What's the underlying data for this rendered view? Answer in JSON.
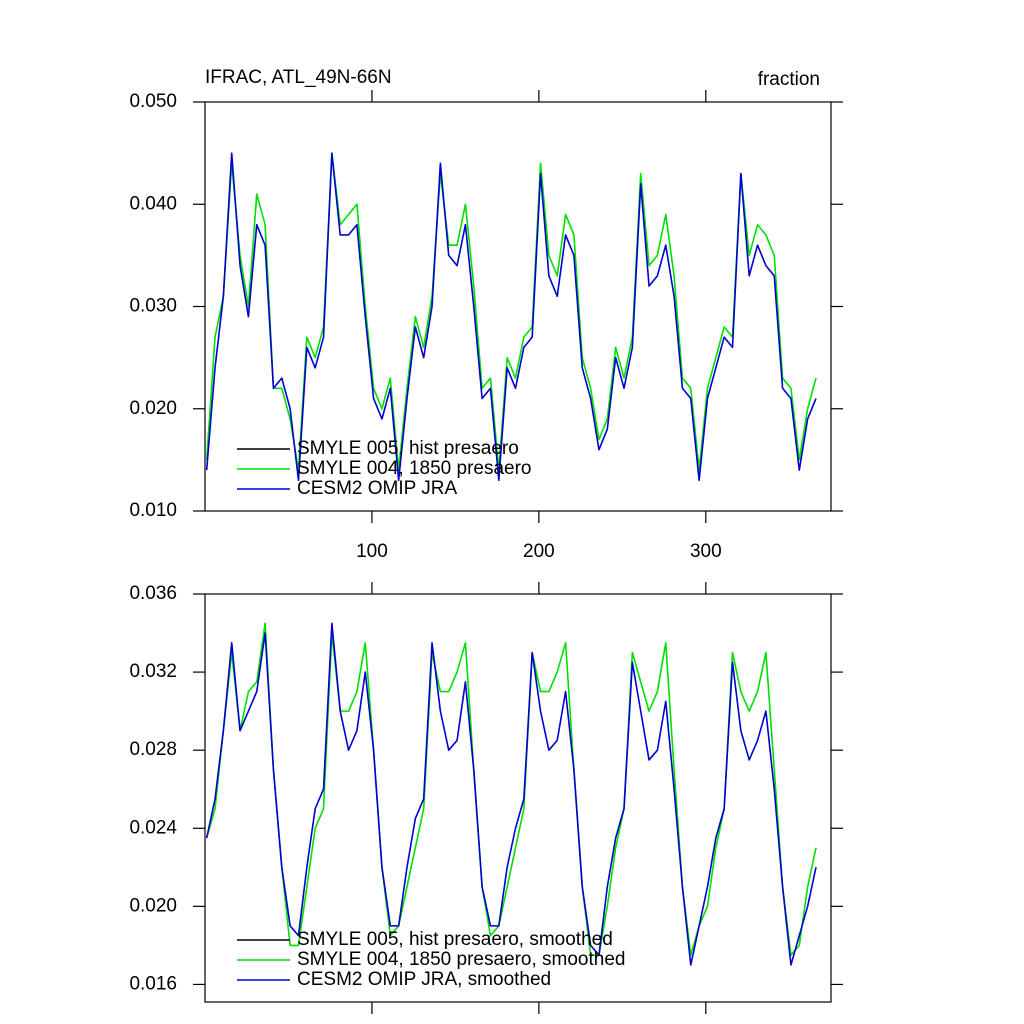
{
  "chart_data": [
    {
      "type": "line",
      "title": "IFRAC, ATL_49N-66N",
      "units_label": "fraction",
      "legend": "lower left",
      "x": [
        1,
        6,
        11,
        16,
        21,
        26,
        31,
        36,
        41,
        46,
        51,
        56,
        61,
        66,
        71,
        76,
        81,
        86,
        91,
        96,
        101,
        106,
        111,
        116,
        121,
        126,
        131,
        136,
        141,
        146,
        151,
        156,
        161,
        166,
        171,
        176,
        181,
        186,
        191,
        196,
        201,
        206,
        211,
        216,
        221,
        226,
        231,
        236,
        241,
        246,
        251,
        256,
        261,
        266,
        271,
        276,
        281,
        286,
        291,
        296,
        301,
        306,
        311,
        316,
        321,
        326,
        331,
        336,
        341,
        346,
        351,
        356,
        361,
        366
      ],
      "xlim": [
        0,
        375
      ],
      "xticks": [
        100,
        200,
        300
      ],
      "xtick_labels": true,
      "ylim": [
        0.01,
        0.05
      ],
      "yticks": [
        {
          "value": 0.01,
          "label": "0.010"
        },
        {
          "value": 0.02,
          "label": "0.020"
        },
        {
          "value": 0.03,
          "label": "0.030"
        },
        {
          "value": 0.04,
          "label": "0.040"
        },
        {
          "value": 0.05,
          "label": "0.050"
        }
      ],
      "series": [
        {
          "name": "SMYLE 005, hist presaero",
          "color": "#000000",
          "values": [
            null,
            null,
            null,
            null,
            null,
            null,
            null,
            null,
            null,
            null,
            null,
            null,
            null,
            null,
            null,
            null,
            null,
            null,
            null,
            null,
            null,
            null,
            null,
            null,
            null,
            null,
            null,
            null,
            null,
            null,
            null,
            null,
            null,
            null,
            null,
            null,
            null,
            null,
            null,
            null,
            null,
            null,
            null,
            null,
            null,
            null,
            null,
            null,
            null,
            null,
            null,
            null,
            null,
            null,
            null,
            null,
            null,
            null,
            null,
            null,
            null,
            null,
            null,
            null,
            null,
            null,
            null,
            null,
            null,
            null,
            null,
            null,
            null,
            null
          ]
        },
        {
          "name": "SMYLE 004, 1850 presaero",
          "color": "#00e000",
          "values": [
            0.015,
            0.027,
            0.031,
            0.044,
            0.035,
            0.03,
            0.041,
            0.038,
            0.022,
            0.022,
            0.019,
            0.014,
            0.027,
            0.025,
            0.028,
            0.045,
            0.038,
            0.039,
            0.04,
            0.03,
            0.022,
            0.02,
            0.023,
            0.014,
            0.022,
            0.029,
            0.026,
            0.031,
            0.043,
            0.036,
            0.036,
            0.04,
            0.032,
            0.022,
            0.023,
            0.014,
            0.025,
            0.023,
            0.027,
            0.028,
            0.044,
            0.035,
            0.033,
            0.039,
            0.037,
            0.025,
            0.022,
            0.017,
            0.019,
            0.026,
            0.023,
            0.027,
            0.043,
            0.034,
            0.035,
            0.039,
            0.033,
            0.023,
            0.022,
            0.014,
            0.022,
            0.025,
            0.028,
            0.027,
            0.043,
            0.035,
            0.038,
            0.037,
            0.035,
            0.023,
            0.022,
            0.015,
            0.02,
            0.023
          ]
        },
        {
          "name": "CESM2 OMIP JRA",
          "color": "#0000d0",
          "values": [
            0.014,
            0.024,
            0.031,
            0.045,
            0.034,
            0.029,
            0.038,
            0.036,
            0.022,
            0.023,
            0.02,
            0.013,
            0.026,
            0.024,
            0.027,
            0.045,
            0.037,
            0.037,
            0.038,
            0.029,
            0.021,
            0.019,
            0.022,
            0.013,
            0.021,
            0.028,
            0.025,
            0.03,
            0.044,
            0.035,
            0.034,
            0.038,
            0.03,
            0.021,
            0.022,
            0.013,
            0.024,
            0.022,
            0.026,
            0.027,
            0.043,
            0.033,
            0.031,
            0.037,
            0.035,
            0.024,
            0.021,
            0.016,
            0.018,
            0.025,
            0.022,
            0.026,
            0.042,
            0.032,
            0.033,
            0.036,
            0.031,
            0.022,
            0.021,
            0.013,
            0.021,
            0.024,
            0.027,
            0.026,
            0.043,
            0.033,
            0.036,
            0.034,
            0.033,
            0.022,
            0.021,
            0.014,
            0.019,
            0.021
          ]
        }
      ]
    },
    {
      "type": "line",
      "legend": "lower left",
      "x": [
        1,
        6,
        11,
        16,
        21,
        26,
        31,
        36,
        41,
        46,
        51,
        56,
        61,
        66,
        71,
        76,
        81,
        86,
        91,
        96,
        101,
        106,
        111,
        116,
        121,
        126,
        131,
        136,
        141,
        146,
        151,
        156,
        161,
        166,
        171,
        176,
        181,
        186,
        191,
        196,
        201,
        206,
        211,
        216,
        221,
        226,
        231,
        236,
        241,
        246,
        251,
        256,
        261,
        266,
        271,
        276,
        281,
        286,
        291,
        296,
        301,
        306,
        311,
        316,
        321,
        326,
        331,
        336,
        341,
        346,
        351,
        356,
        361,
        366
      ],
      "xlim": [
        0,
        375
      ],
      "xticks": [
        100,
        200,
        300
      ],
      "xtick_labels": false,
      "ylim": [
        0.0151,
        0.036
      ],
      "yticks": [
        0.016,
        {
          "value": 0.02,
          "label": "0.020"
        },
        0.024,
        0.028,
        0.032,
        0.036
      ],
      "series": [
        {
          "name": "SMYLE 005, hist presaero, smoothed",
          "color": "#000000",
          "values": [
            null,
            null,
            null,
            null,
            null,
            null,
            null,
            null,
            null,
            null,
            null,
            null,
            null,
            null,
            null,
            null,
            null,
            null,
            null,
            null,
            null,
            null,
            null,
            null,
            null,
            null,
            null,
            null,
            null,
            null,
            null,
            null,
            null,
            null,
            null,
            null,
            null,
            null,
            null,
            null,
            null,
            null,
            null,
            null,
            null,
            null,
            null,
            null,
            null,
            null,
            null,
            null,
            null,
            null,
            null,
            null,
            null,
            null,
            null,
            null,
            null,
            null,
            null,
            null,
            null,
            null,
            null,
            null,
            null,
            null,
            null,
            null,
            null,
            null
          ]
        },
        {
          "name": "SMYLE 004, 1850 presaero, smoothed",
          "color": "#00e000",
          "values": [
            0.0235,
            0.025,
            0.029,
            0.033,
            0.029,
            0.031,
            0.0315,
            0.0345,
            0.027,
            0.022,
            0.018,
            0.018,
            0.021,
            0.024,
            0.025,
            0.034,
            0.03,
            0.03,
            0.031,
            0.0335,
            0.028,
            0.022,
            0.0185,
            0.019,
            0.021,
            0.023,
            0.025,
            0.033,
            0.031,
            0.031,
            0.032,
            0.0335,
            0.027,
            0.021,
            0.0185,
            0.019,
            0.021,
            0.023,
            0.025,
            0.033,
            0.031,
            0.031,
            0.032,
            0.0335,
            0.027,
            0.021,
            0.0175,
            0.0175,
            0.02,
            0.023,
            0.025,
            0.033,
            0.0315,
            0.03,
            0.031,
            0.0335,
            0.027,
            0.021,
            0.0175,
            0.019,
            0.02,
            0.023,
            0.025,
            0.033,
            0.031,
            0.03,
            0.031,
            0.033,
            0.027,
            0.021,
            0.0175,
            0.018,
            0.021,
            0.023
          ]
        },
        {
          "name": "CESM2 OMIP JRA, smoothed",
          "color": "#0000d0",
          "values": [
            0.0235,
            0.0255,
            0.029,
            0.0335,
            0.029,
            0.03,
            0.031,
            0.034,
            0.027,
            0.022,
            0.019,
            0.0185,
            0.022,
            0.025,
            0.026,
            0.0345,
            0.03,
            0.028,
            0.029,
            0.032,
            0.028,
            0.022,
            0.019,
            0.019,
            0.022,
            0.0245,
            0.0255,
            0.0335,
            0.03,
            0.028,
            0.0285,
            0.0315,
            0.027,
            0.021,
            0.019,
            0.019,
            0.022,
            0.024,
            0.0255,
            0.033,
            0.03,
            0.028,
            0.0285,
            0.031,
            0.027,
            0.021,
            0.018,
            0.0175,
            0.021,
            0.0235,
            0.025,
            0.0325,
            0.03,
            0.0275,
            0.028,
            0.0305,
            0.026,
            0.021,
            0.017,
            0.019,
            0.021,
            0.0235,
            0.025,
            0.0325,
            0.029,
            0.0275,
            0.0285,
            0.03,
            0.026,
            0.021,
            0.017,
            0.0185,
            0.02,
            0.022
          ]
        }
      ]
    }
  ]
}
